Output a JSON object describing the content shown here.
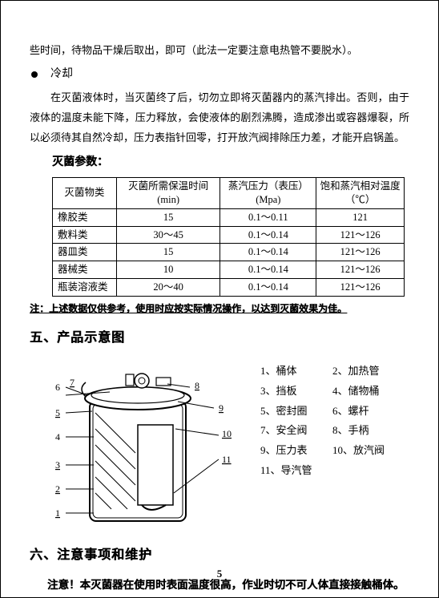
{
  "top_para": "些时间，待物品干燥后取出，即可（此法一定要注意电热管不要脱水）。",
  "bullet_label": "冷却",
  "cooling_para": "在灭菌液体时，当灭菌终了后，切勿立即将灭菌器内的蒸汽排出。否则，由于液体的温度未能下降，压力释放，会使液体的剧烈沸腾，造成渗出或容器爆裂，所以必须待其自然冷却，压力表指针回零，打开放汽阀排除压力差，才能开启锅盖。",
  "table_title": "灭菌参数：",
  "table": {
    "headers": [
      {
        "line1": "灭菌物类",
        "line2": ""
      },
      {
        "line1": "灭菌所需保温时间",
        "line2": "(min)"
      },
      {
        "line1": "蒸汽压力（表压）",
        "line2": "(Mpa)"
      },
      {
        "line1": "饱和蒸汽相对温度",
        "line2": "（℃）"
      }
    ],
    "rows": [
      [
        "橡胶类",
        "15",
        "0.1～0.11",
        "121"
      ],
      [
        "敷料类",
        "30～45",
        "0.1～0.14",
        "121～126"
      ],
      [
        "器皿类",
        "15",
        "0.1～0.14",
        "121～126"
      ],
      [
        "器械类",
        "10",
        "0.1～0.14",
        "121～126"
      ],
      [
        "瓶装溶液类",
        "20～40",
        "0.1～0.14",
        "121～126"
      ]
    ],
    "col_widths": [
      "80px",
      "130px",
      "120px",
      "110px"
    ]
  },
  "note": "注：上述数据仅供参考，使用时应按实际情况操作，以达到灭菌效果为佳。",
  "section5": "五、产品示意图",
  "legend": [
    [
      "1、桶体",
      "2、加热管"
    ],
    [
      "3、挡板",
      "4、储物桶"
    ],
    [
      "5、密封圈",
      "6、螺杆"
    ],
    [
      "7、安全阀",
      "8、手柄"
    ],
    [
      "9、压力表",
      "10、放汽阀"
    ],
    [
      "11、导汽管",
      ""
    ]
  ],
  "diagram_numbers": [
    "1",
    "2",
    "3",
    "4",
    "5",
    "6",
    "7",
    "8",
    "9",
    "10",
    "11"
  ],
  "section6": "六、注意事项和维护",
  "warning": "注意！本灭菌器在使用时表面温度很高，作业时切不可人体直接接触桶体。",
  "page_number": "5"
}
